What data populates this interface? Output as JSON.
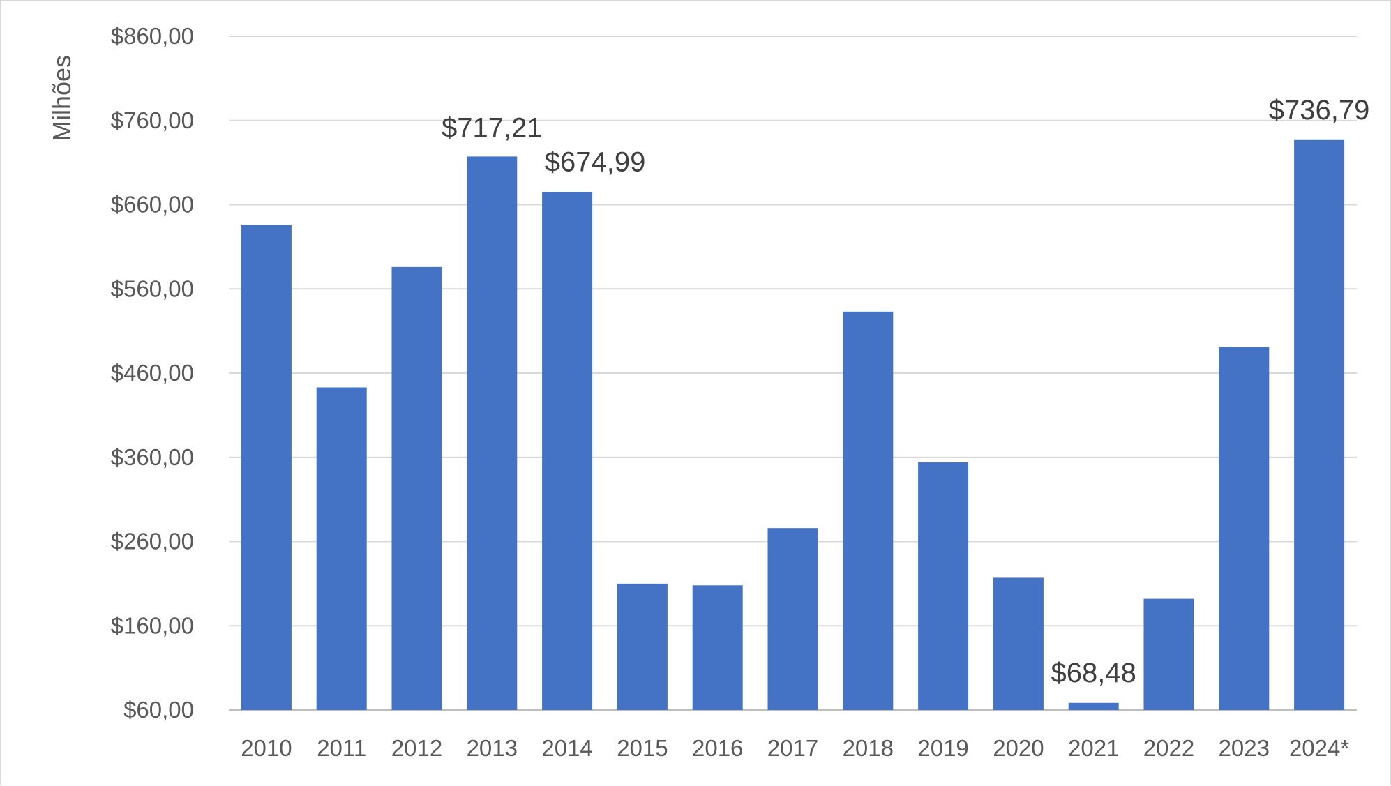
{
  "chart_data": {
    "type": "bar",
    "ylabel": "Milhões",
    "ylim": [
      60,
      860
    ],
    "y_ticks": [
      "$60,00",
      "$160,00",
      "$260,00",
      "$360,00",
      "$460,00",
      "$560,00",
      "$660,00",
      "$760,00",
      "$860,00"
    ],
    "y_tick_values": [
      60,
      160,
      260,
      360,
      460,
      560,
      660,
      760,
      860
    ],
    "categories": [
      "2010",
      "2011",
      "2012",
      "2013",
      "2014",
      "2015",
      "2016",
      "2017",
      "2018",
      "2019",
      "2020",
      "2021",
      "2022",
      "2023",
      "2024*"
    ],
    "values": [
      636,
      443,
      586,
      717.21,
      674.99,
      210,
      208,
      276,
      533,
      354,
      217,
      68.48,
      192,
      491,
      736.79
    ],
    "data_labels": [
      {
        "category": "2013",
        "text": "$717,21"
      },
      {
        "category": "2014",
        "text": "$674,99"
      },
      {
        "category": "2021",
        "text": "$68,48"
      },
      {
        "category": "2024*",
        "text": "$736,79"
      }
    ],
    "bar_color": "#4472C4",
    "grid": true,
    "legend": "none"
  }
}
